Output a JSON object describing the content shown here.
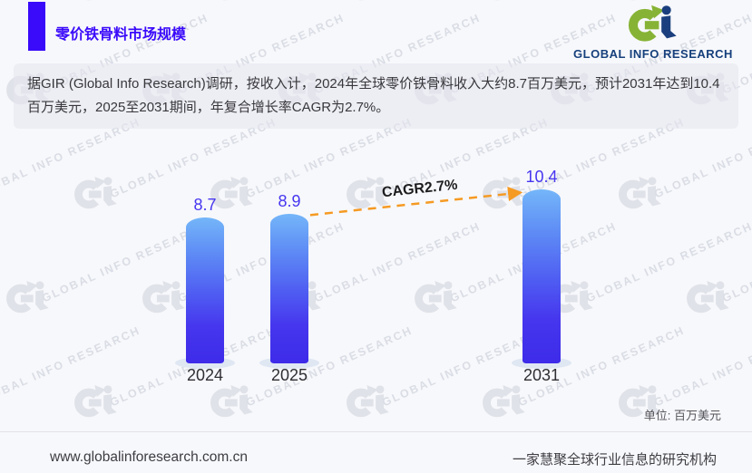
{
  "header": {
    "title": "零价铁骨料市场规模",
    "logo_text": "GLOBAL INFO RESEARCH"
  },
  "summary": {
    "text": "据GIR (Global Info Research)调研，按收入计，2024年全球零价铁骨料收入大约8.7百万美元，预计2031年达到10.4百万美元，2025至2031期间，年复合增长率CAGR为2.7%。"
  },
  "chart_data": {
    "type": "bar",
    "title": "零价铁骨料市场规模",
    "categories": [
      "2024",
      "2025",
      "2031"
    ],
    "values": [
      8.7,
      8.9,
      10.4
    ],
    "value_labels": [
      "8.7",
      "8.9",
      "10.4"
    ],
    "cagr_label": "CAGR2.7%",
    "unit_label": "单位: 百万美元",
    "ylabel": "",
    "xlabel": "",
    "ylim": [
      0,
      12
    ],
    "grid": false,
    "legend": "none",
    "bar_color_top": "#74b6f9",
    "bar_color_bottom": "#3d2be9",
    "value_label_color": "#4636f0",
    "trend_line_color": "#f59a23"
  },
  "watermark": {
    "glyph": "Gi",
    "text": "GLOBAL INFO RESEARCH"
  },
  "footer": {
    "website": "www.globalinforesearch.com.cn",
    "tagline": "一家慧聚全球行业信息的研究机构"
  },
  "colors": {
    "accent": "#3a0afa",
    "logo_green": "#86b335",
    "logo_navy": "#1b3f7e",
    "background": "#f7f8fb"
  }
}
